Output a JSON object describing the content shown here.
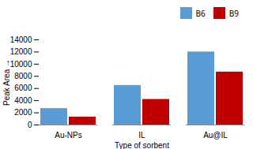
{
  "chart_data": {
    "type": "bar",
    "categories": [
      "Au-NPs",
      "IL",
      "Au@IL"
    ],
    "series": [
      {
        "name": "B6",
        "color": "#5b9bd5",
        "values": [
          2700,
          6500,
          12000
        ]
      },
      {
        "name": "B9",
        "color": "#c00000",
        "values": [
          1300,
          4200,
          8700
        ]
      }
    ],
    "xlabel": "Type of sorbent",
    "ylabel": "Peak Area",
    "ylim": [
      0,
      14000
    ],
    "yticks": [
      0,
      2000,
      4000,
      6000,
      8000,
      10000,
      12000,
      14000
    ],
    "legend": "upper right",
    "grid": false
  }
}
